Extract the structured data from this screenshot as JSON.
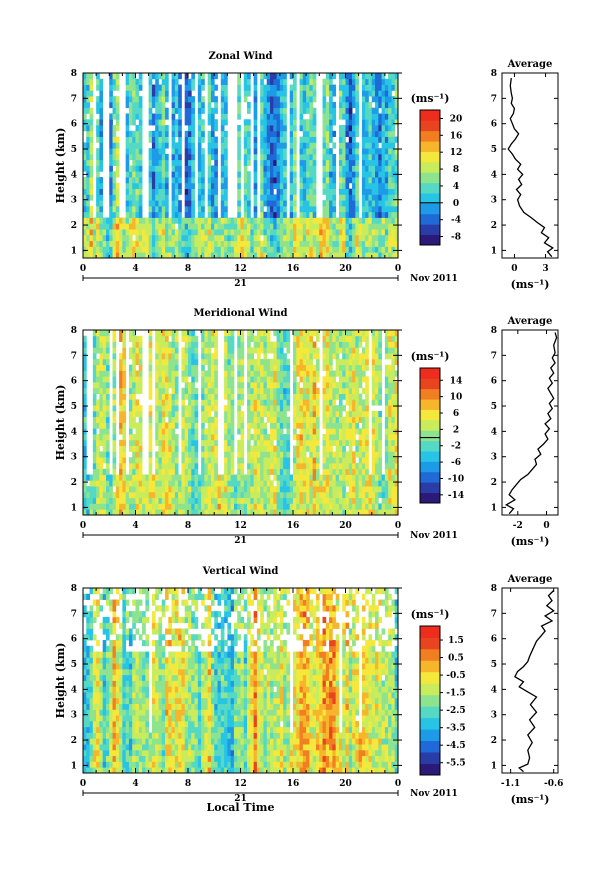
{
  "chart_data": [
    {
      "type": "heatmap",
      "title": "Zonal Wind",
      "ylabel": "Height (km)",
      "yticks": [
        "1",
        "2",
        "3",
        "4",
        "5",
        "6",
        "7",
        "8"
      ],
      "ylim": [
        0.7,
        8
      ],
      "xticks": [
        "0",
        "4",
        "8",
        "12",
        "16",
        "20",
        "0"
      ],
      "xlim": [
        0,
        24
      ],
      "day_label": "21",
      "date_label": "Nov 2011",
      "colorbar": {
        "unit": "(ms⁻¹)",
        "ticks": [
          "20",
          "16",
          "12",
          "8",
          "4",
          "0",
          "-4",
          "-8"
        ],
        "range": [
          -10,
          22
        ],
        "zero_line": 0
      },
      "profile": {
        "title": "Average",
        "xlabel": "(ms⁻¹)",
        "xticks": [
          "0",
          "3"
        ],
        "xlim": [
          -1.2,
          4.2
        ],
        "points": [
          [
            3.6,
            0.75
          ],
          [
            3.2,
            0.95
          ],
          [
            3.7,
            1.1
          ],
          [
            2.9,
            1.3
          ],
          [
            3.3,
            1.5
          ],
          [
            2.6,
            1.7
          ],
          [
            2.9,
            1.9
          ],
          [
            2.2,
            2.1
          ],
          [
            1.6,
            2.3
          ],
          [
            0.9,
            2.5
          ],
          [
            0.5,
            2.75
          ],
          [
            0.3,
            3.0
          ],
          [
            0.6,
            3.2
          ],
          [
            0.2,
            3.4
          ],
          [
            0.7,
            3.6
          ],
          [
            0.4,
            3.8
          ],
          [
            0.8,
            4.0
          ],
          [
            0.3,
            4.2
          ],
          [
            0.6,
            4.4
          ],
          [
            0.1,
            4.6
          ],
          [
            -0.2,
            4.8
          ],
          [
            -0.6,
            5.0
          ],
          [
            -0.3,
            5.2
          ],
          [
            0.1,
            5.4
          ],
          [
            0.4,
            5.6
          ],
          [
            0.0,
            5.8
          ],
          [
            -0.2,
            6.0
          ],
          [
            -0.4,
            6.2
          ],
          [
            -0.1,
            6.4
          ],
          [
            0.0,
            6.6
          ],
          [
            -0.3,
            6.8
          ],
          [
            -0.2,
            7.0
          ],
          [
            -0.3,
            7.2
          ],
          [
            -0.4,
            7.5
          ],
          [
            -0.3,
            7.8
          ]
        ]
      }
    },
    {
      "type": "heatmap",
      "title": "Meridional Wind",
      "ylabel": "Height (km)",
      "yticks": [
        "1",
        "2",
        "3",
        "4",
        "5",
        "6",
        "7",
        "8"
      ],
      "ylim": [
        0.7,
        8
      ],
      "xticks": [
        "0",
        "4",
        "8",
        "12",
        "16",
        "20",
        "0"
      ],
      "xlim": [
        0,
        24
      ],
      "day_label": "21",
      "date_label": "Nov 2011",
      "colorbar": {
        "unit": "(ms⁻¹)",
        "ticks": [
          "14",
          "10",
          "6",
          "2",
          "-2",
          "-6",
          "-10",
          "-14"
        ],
        "range": [
          -16,
          17
        ],
        "zero_line": 0
      },
      "profile": {
        "title": "Average",
        "xlabel": "(ms⁻¹)",
        "xticks": [
          "-2",
          "0"
        ],
        "xlim": [
          -3.1,
          0.8
        ],
        "points": [
          [
            -2.6,
            0.75
          ],
          [
            -2.3,
            0.95
          ],
          [
            -2.8,
            1.1
          ],
          [
            -2.2,
            1.3
          ],
          [
            -2.6,
            1.5
          ],
          [
            -2.4,
            1.7
          ],
          [
            -2.1,
            1.9
          ],
          [
            -1.8,
            2.1
          ],
          [
            -1.3,
            2.3
          ],
          [
            -1.0,
            2.5
          ],
          [
            -0.7,
            2.7
          ],
          [
            -0.8,
            2.9
          ],
          [
            -0.4,
            3.1
          ],
          [
            -0.6,
            3.3
          ],
          [
            -0.2,
            3.5
          ],
          [
            0.1,
            3.7
          ],
          [
            -0.1,
            3.9
          ],
          [
            0.2,
            4.1
          ],
          [
            -0.1,
            4.3
          ],
          [
            0.3,
            4.5
          ],
          [
            0.1,
            4.7
          ],
          [
            0.4,
            4.9
          ],
          [
            0.2,
            5.1
          ],
          [
            0.5,
            5.3
          ],
          [
            0.3,
            5.5
          ],
          [
            0.1,
            5.7
          ],
          [
            0.4,
            5.9
          ],
          [
            0.2,
            6.1
          ],
          [
            0.5,
            6.3
          ],
          [
            0.3,
            6.5
          ],
          [
            0.6,
            6.7
          ],
          [
            0.4,
            6.9
          ],
          [
            0.6,
            7.1
          ],
          [
            0.5,
            7.4
          ],
          [
            0.7,
            7.7
          ],
          [
            0.6,
            7.9
          ]
        ]
      }
    },
    {
      "type": "heatmap",
      "title": "Vertical Wind",
      "ylabel": "Height (km)",
      "xlabel": "Local Time",
      "yticks": [
        "1",
        "2",
        "3",
        "4",
        "5",
        "6",
        "7",
        "8"
      ],
      "ylim": [
        0.7,
        8
      ],
      "xticks": [
        "0",
        "4",
        "8",
        "12",
        "16",
        "20",
        "0"
      ],
      "xlim": [
        0,
        24
      ],
      "day_label": "21",
      "date_label": "Nov 2011",
      "colorbar": {
        "unit": "(ms⁻¹)",
        "ticks": [
          "1.5",
          "0.5",
          "-0.5",
          "-1.5",
          "-2.5",
          "-3.5",
          "-4.5",
          "-5.5"
        ],
        "range": [
          -6.2,
          2.3
        ]
      },
      "profile": {
        "title": "Average",
        "xlabel": "(ms⁻¹)",
        "xticks": [
          "-1.1",
          "-0.6"
        ],
        "xlim": [
          -1.2,
          -0.55
        ],
        "points": [
          [
            -0.95,
            0.75
          ],
          [
            -1.0,
            0.9
          ],
          [
            -0.9,
            1.05
          ],
          [
            -0.88,
            1.3
          ],
          [
            -0.9,
            1.6
          ],
          [
            -0.85,
            1.9
          ],
          [
            -0.9,
            2.2
          ],
          [
            -0.82,
            2.5
          ],
          [
            -0.88,
            2.8
          ],
          [
            -0.8,
            3.1
          ],
          [
            -0.87,
            3.4
          ],
          [
            -0.8,
            3.7
          ],
          [
            -0.9,
            3.9
          ],
          [
            -1.0,
            4.1
          ],
          [
            -0.95,
            4.3
          ],
          [
            -1.05,
            4.5
          ],
          [
            -1.02,
            4.7
          ],
          [
            -0.95,
            4.9
          ],
          [
            -0.9,
            5.1
          ],
          [
            -0.88,
            5.3
          ],
          [
            -0.84,
            5.6
          ],
          [
            -0.8,
            5.9
          ],
          [
            -0.75,
            6.1
          ],
          [
            -0.7,
            6.3
          ],
          [
            -0.74,
            6.5
          ],
          [
            -0.62,
            6.7
          ],
          [
            -0.7,
            6.9
          ],
          [
            -0.6,
            7.1
          ],
          [
            -0.68,
            7.3
          ],
          [
            -0.62,
            7.5
          ],
          [
            -0.66,
            7.7
          ],
          [
            -0.6,
            7.9
          ]
        ]
      }
    }
  ]
}
